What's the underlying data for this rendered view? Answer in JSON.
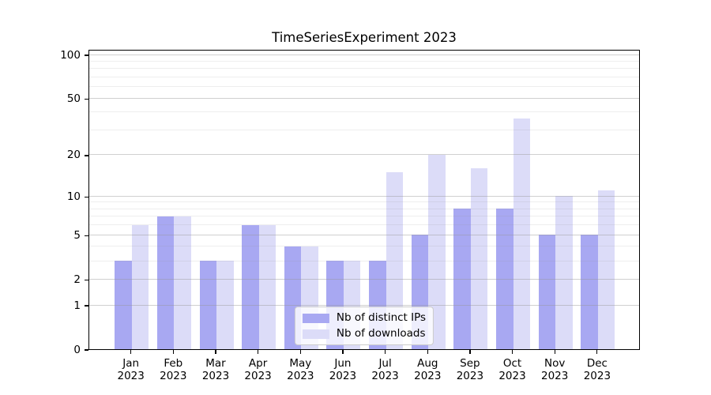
{
  "chart_data": {
    "type": "bar",
    "title": "TimeSeriesExperiment 2023",
    "categories": [
      "Jan",
      "Feb",
      "Mar",
      "Apr",
      "May",
      "Jun",
      "Jul",
      "Aug",
      "Sep",
      "Oct",
      "Nov",
      "Dec"
    ],
    "category_year": "2023",
    "series": [
      {
        "name": "Nb of distinct IPs",
        "color": "#a8a8f2",
        "values": [
          3,
          7,
          3,
          6,
          4,
          3,
          3,
          5,
          8,
          8,
          5,
          5
        ]
      },
      {
        "name": "Nb of downloads",
        "color": "#dcdcf8",
        "values": [
          6,
          7,
          3,
          6,
          4,
          3,
          15,
          20,
          16,
          36,
          10,
          11
        ]
      }
    ],
    "yscale": "log1p",
    "ytick_labels": [
      "100",
      "50",
      "20",
      "10",
      "5",
      "2",
      "1",
      "0"
    ],
    "yticks": [
      100,
      50,
      20,
      10,
      5,
      2,
      1,
      0
    ],
    "minor_gridlines": [
      3,
      4,
      6,
      7,
      8,
      9,
      30,
      40,
      60,
      70,
      80,
      90
    ],
    "ylim": [
      0,
      109
    ],
    "xlabel": "",
    "ylabel": "",
    "grid": true,
    "legend": {
      "position": "lower center"
    }
  }
}
